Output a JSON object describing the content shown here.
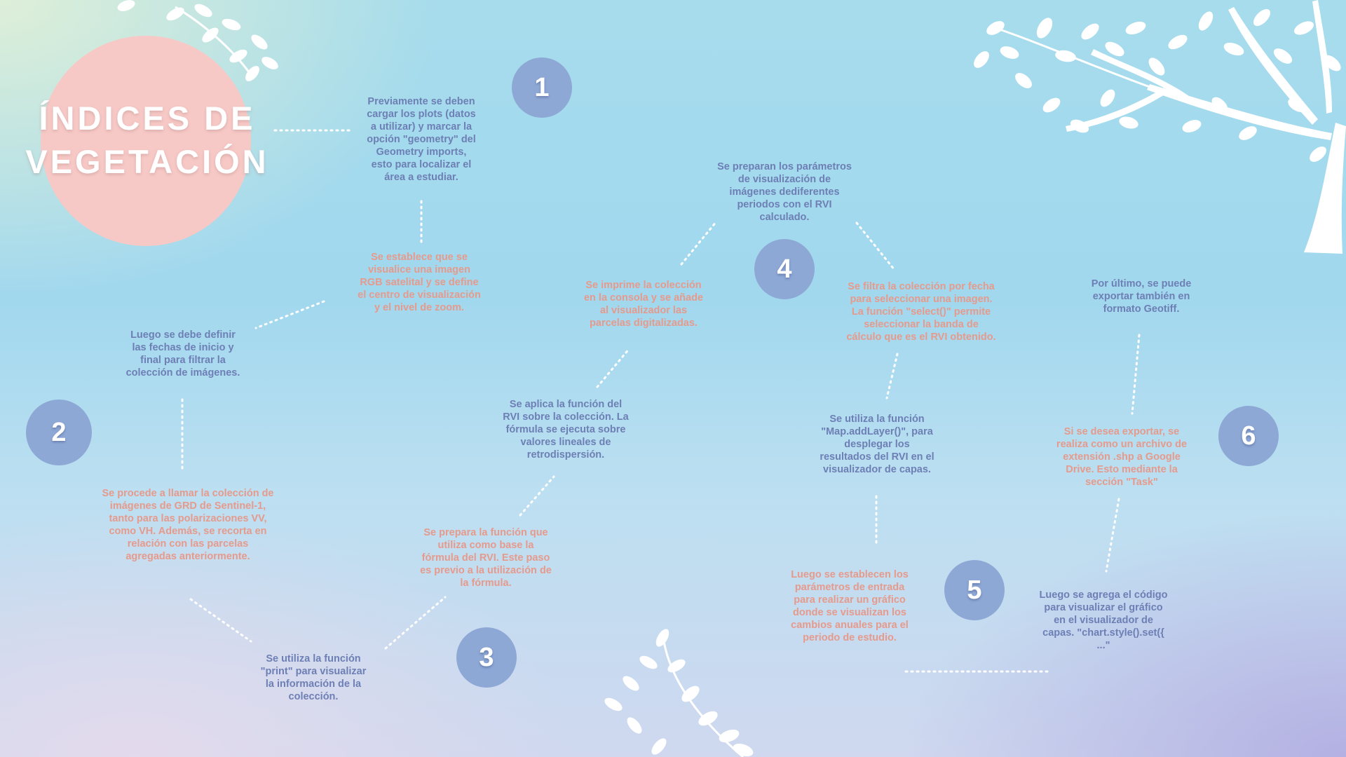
{
  "title": "ÍNDICES DE VEGETACIÓN",
  "colors": {
    "step_circle": "#8ea8d6",
    "title_circle": "#f7c9c6",
    "text_blue": "#6d7fb4",
    "text_pink": "#e69a8c"
  },
  "steps": [
    "1",
    "2",
    "3",
    "4",
    "5",
    "6"
  ],
  "texts": {
    "t1": "Previamente se deben\ncargar los plots (datos\na utilizar) y  marcar la\nopción \"geometry\" del\nGeometry imports,\nesto  para localizar el\nárea a estudiar.",
    "t2": "Se establece que se\nvisualice una imagen\nRGB satelital  y se define\nel centro de visualización\ny el nivel de zoom.",
    "t3": "Luego se debe definir\nlas fechas de inicio y\nfinal para filtrar la\ncolección de imágenes.",
    "t4": "Se procede a llamar la colección de\nimágenes de GRD de Sentinel-1,\ntanto para las polarizaciones VV,\ncomo VH. Además, se recorta en\nrelación con las parcelas\nagregadas anteriormente.",
    "t5": "Se utiliza la función\n\"print\" para visualizar\nla información de la\ncolección.",
    "t6": "Se prepara la función que\nutiliza como base la\nfórmula del RVI. Este paso\nes previo a la utilización de\nla fórmula.",
    "t7": "Se aplica la función del\nRVI sobre la colección. La\nfórmula se ejecuta sobre\nvalores lineales de\nretrodispersión.",
    "t8": "Se imprime la colección\nen la consola y se añade\nal visualizador las\nparcelas digitalizadas.",
    "t9": "Se preparan los parámetros\nde visualización de\nimágenes  dediferentes\nperiodos con el RVI\ncalculado.",
    "t10": "Se filtra la colección  por fecha\npara seleccionar una imagen.\nLa función  \"select()\" permite\nseleccionar la banda de\ncálculo que es el RVI obtenido.",
    "t11": "Se utiliza la función\n\"Map.addLayer()\", para\ndesplegar los\nresultados del RVI en el\nvisualizador de capas.",
    "t12": "Luego se establecen los\nparámetros de entrada\npara realizar un gráfico\ndonde se visualizan los\ncambios anuales para el\nperiodo de estudio.",
    "t13": "Luego se agrega el código\npara visualizar el gráfico\nen el visualizador de\ncapas. \"chart.style().set({\n...\"",
    "t14": "Si se desea exportar, se\nrealiza como un archivo de\nextensión .shp a Google\nDrive. Esto mediante la\nsección \"Task\"",
    "t15": "Por último, se puede\nexportar también en\nformato Geotiff."
  }
}
